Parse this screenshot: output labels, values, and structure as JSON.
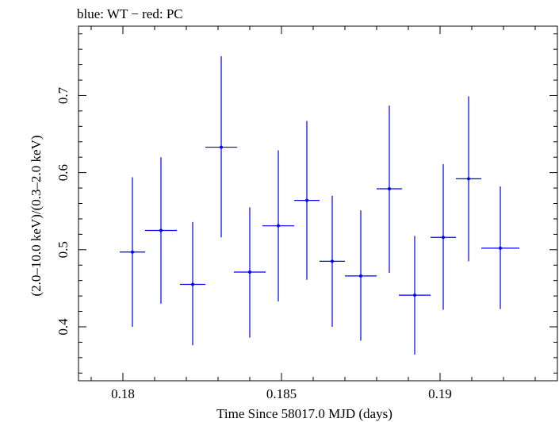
{
  "chart_data": {
    "type": "scatter",
    "title": "blue: WT − red: PC",
    "xlabel": "Time Since 58017.0 MJD (days)",
    "ylabel": "(2.0–10.0 keV)/(0.3–2.0 keV)",
    "xlim": [
      0.1786,
      0.1937
    ],
    "ylim": [
      0.33,
      0.79
    ],
    "x_ticks": [
      {
        "value": 0.18,
        "label": "0.18"
      },
      {
        "value": 0.185,
        "label": "0.185"
      },
      {
        "value": 0.19,
        "label": "0.19"
      }
    ],
    "y_ticks": [
      {
        "value": 0.4,
        "label": "0.4"
      },
      {
        "value": 0.5,
        "label": "0.5"
      },
      {
        "value": 0.6,
        "label": "0.6"
      },
      {
        "value": 0.7,
        "label": "0.7"
      }
    ],
    "x_minor_step": 0.001,
    "y_minor_step": 0.02,
    "grid": false,
    "series": [
      {
        "color": "#0000ee",
        "points": [
          {
            "x": 0.1803,
            "xerr": 0.0004,
            "y": 0.497,
            "ylo": 0.4,
            "yhi": 0.594
          },
          {
            "x": 0.1812,
            "xerr": 0.0005,
            "y": 0.525,
            "ylo": 0.43,
            "yhi": 0.62
          },
          {
            "x": 0.1822,
            "xerr": 0.0004,
            "y": 0.455,
            "ylo": 0.376,
            "yhi": 0.536
          },
          {
            "x": 0.1831,
            "xerr": 0.0005,
            "y": 0.633,
            "ylo": 0.516,
            "yhi": 0.751
          },
          {
            "x": 0.184,
            "xerr": 0.0005,
            "y": 0.471,
            "ylo": 0.386,
            "yhi": 0.555
          },
          {
            "x": 0.1849,
            "xerr": 0.0005,
            "y": 0.531,
            "ylo": 0.433,
            "yhi": 0.629
          },
          {
            "x": 0.1858,
            "xerr": 0.0004,
            "y": 0.564,
            "ylo": 0.461,
            "yhi": 0.667
          },
          {
            "x": 0.1866,
            "xerr": 0.0004,
            "y": 0.485,
            "ylo": 0.4,
            "yhi": 0.57
          },
          {
            "x": 0.1875,
            "xerr": 0.0005,
            "y": 0.466,
            "ylo": 0.382,
            "yhi": 0.551
          },
          {
            "x": 0.1884,
            "xerr": 0.0004,
            "y": 0.579,
            "ylo": 0.47,
            "yhi": 0.687
          },
          {
            "x": 0.1892,
            "xerr": 0.0005,
            "y": 0.441,
            "ylo": 0.364,
            "yhi": 0.518
          },
          {
            "x": 0.1901,
            "xerr": 0.0004,
            "y": 0.516,
            "ylo": 0.422,
            "yhi": 0.611
          },
          {
            "x": 0.1909,
            "xerr": 0.0004,
            "y": 0.592,
            "ylo": 0.485,
            "yhi": 0.699
          },
          {
            "x": 0.1919,
            "xerr": 0.0006,
            "y": 0.502,
            "ylo": 0.423,
            "yhi": 0.582
          }
        ]
      }
    ]
  }
}
